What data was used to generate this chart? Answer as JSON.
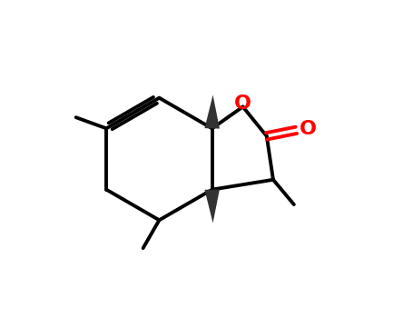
{
  "bg_color": "#ffffff",
  "bond_color": "#000000",
  "o_color": "#ff0000",
  "lw": 2.8,
  "lw_thick": 2.8,
  "fig_width": 4.55,
  "fig_height": 3.5,
  "dpi": 100,
  "wedge_color": "#444444"
}
